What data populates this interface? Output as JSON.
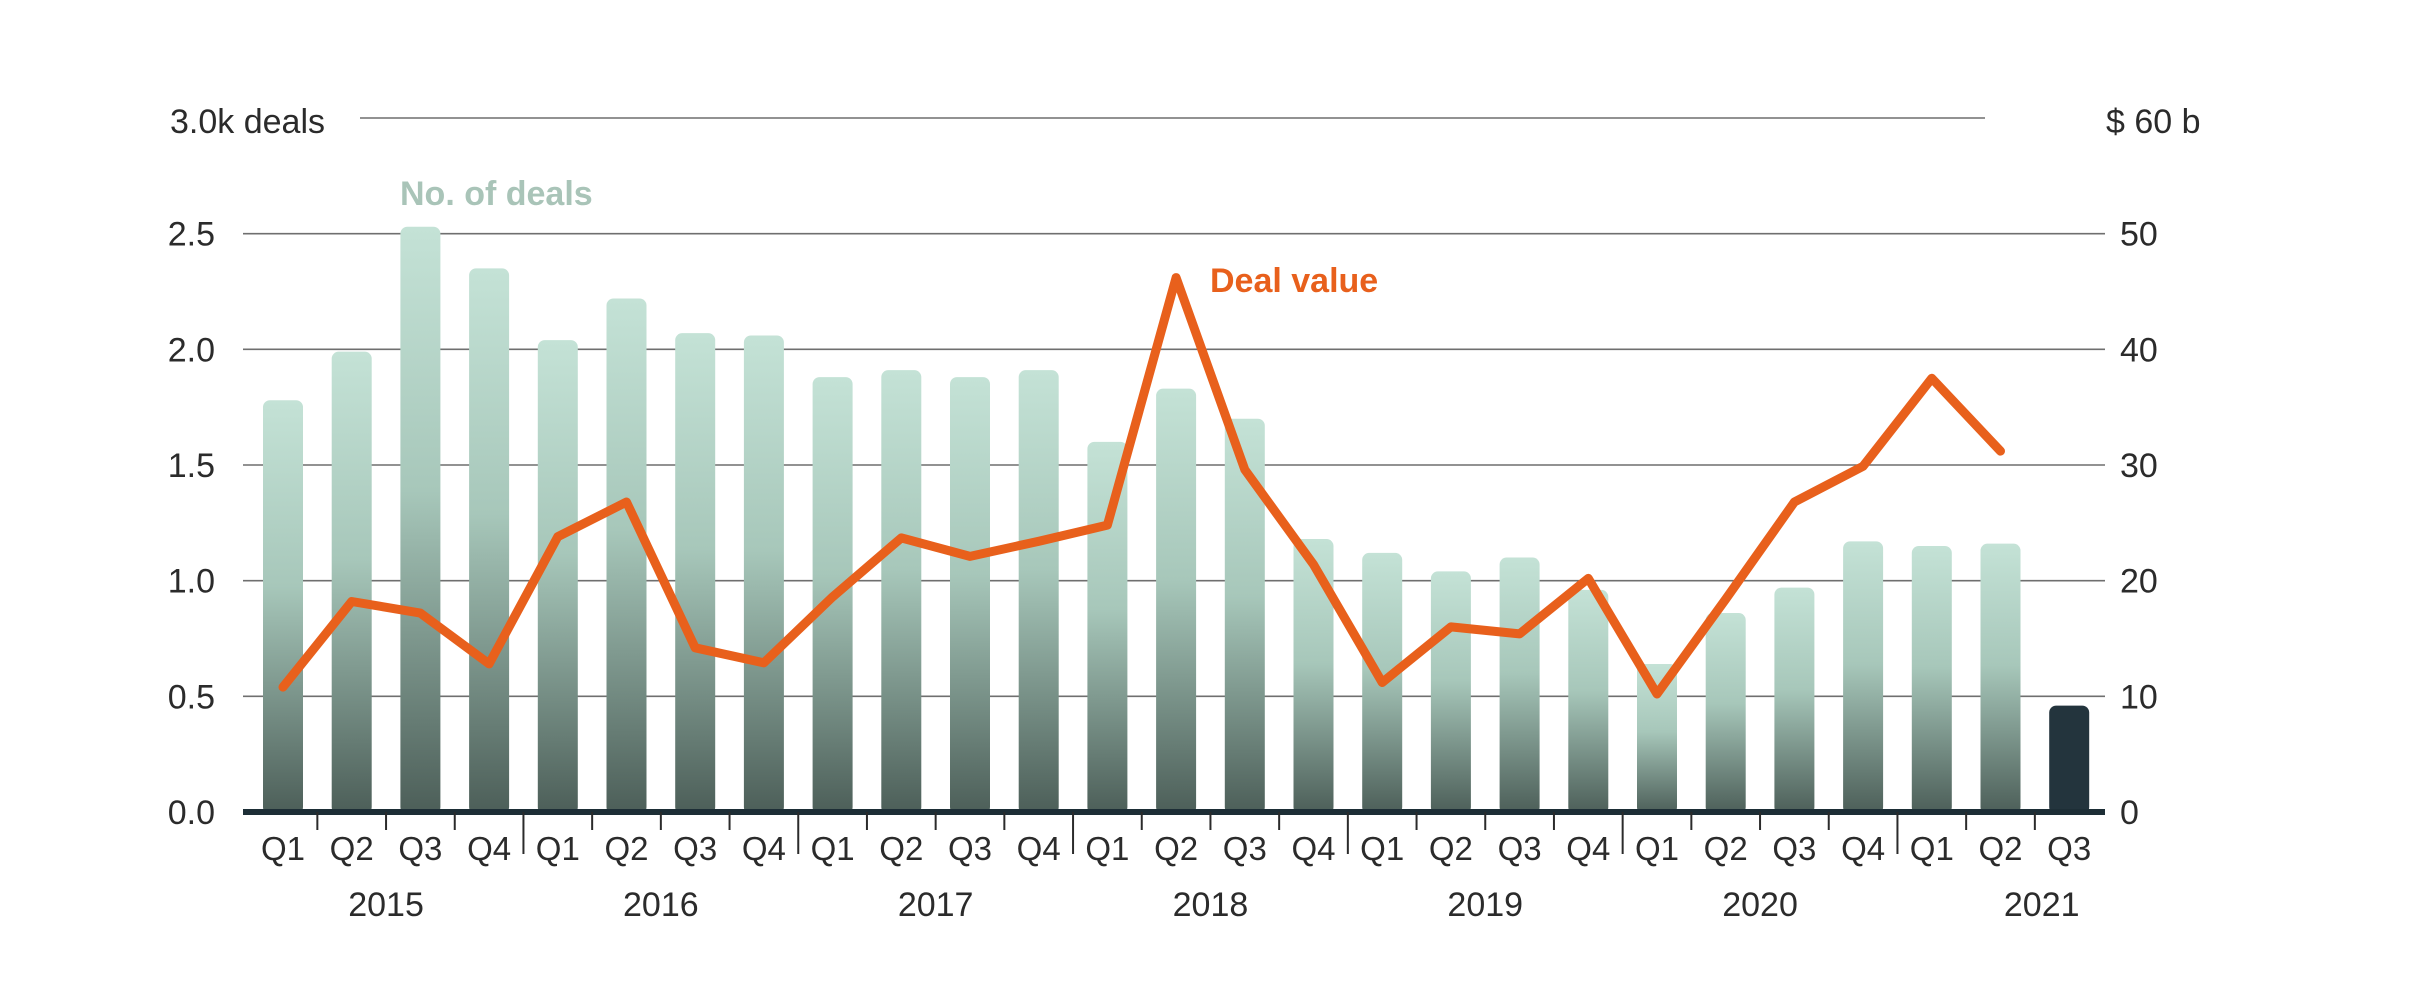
{
  "chart_data": {
    "type": "bar",
    "left_axis": {
      "ticks": [
        "0.0",
        "0.5",
        "1.0",
        "1.5",
        "2.0",
        "2.5"
      ],
      "top_label": "3.0k deals",
      "ylim": [
        0,
        3.0
      ]
    },
    "right_axis": {
      "ticks": [
        "0",
        "10",
        "20",
        "30",
        "40",
        "50"
      ],
      "top_label": "$ 60 b",
      "ylim": [
        0,
        60
      ]
    },
    "grid": true,
    "categories": [
      "Q1",
      "Q2",
      "Q3",
      "Q4",
      "Q1",
      "Q2",
      "Q3",
      "Q4",
      "Q1",
      "Q2",
      "Q3",
      "Q4",
      "Q1",
      "Q2",
      "Q3",
      "Q4",
      "Q1",
      "Q2",
      "Q3",
      "Q4",
      "Q1",
      "Q2",
      "Q3",
      "Q4",
      "Q1",
      "Q2",
      "Q3"
    ],
    "years": [
      {
        "label": "2015",
        "start": 0,
        "count": 4
      },
      {
        "label": "2016",
        "start": 4,
        "count": 4
      },
      {
        "label": "2017",
        "start": 8,
        "count": 4
      },
      {
        "label": "2018",
        "start": 12,
        "count": 4
      },
      {
        "label": "2019",
        "start": 16,
        "count": 4
      },
      {
        "label": "2020",
        "start": 20,
        "count": 4
      },
      {
        "label": "2021",
        "start": 24,
        "count": 3
      }
    ],
    "series": [
      {
        "name": "No. of deals",
        "kind": "bar",
        "axis": "left",
        "color_top": "#c4e2d6",
        "color_bottom": "#4c5e58",
        "highlight_color": "#23343d",
        "highlight_index": 26,
        "values": [
          1.78,
          1.99,
          2.53,
          2.35,
          2.04,
          2.22,
          2.07,
          2.06,
          1.88,
          1.91,
          1.88,
          1.91,
          1.6,
          1.83,
          1.7,
          1.18,
          1.12,
          1.04,
          1.1,
          0.96,
          0.64,
          0.86,
          0.97,
          1.17,
          1.15,
          1.16,
          0.46
        ]
      },
      {
        "name": "Deal value",
        "kind": "line",
        "axis": "right",
        "color": "#e8601c",
        "values": [
          10.8,
          18.2,
          17.2,
          12.8,
          23.8,
          26.8,
          14.2,
          12.9,
          18.6,
          23.7,
          22.1,
          23.4,
          24.8,
          46.2,
          29.6,
          21.4,
          11.2,
          16.0,
          15.4,
          20.2,
          10.2,
          18.4,
          26.8,
          29.9,
          37.5,
          31.2,
          null
        ]
      }
    ]
  }
}
